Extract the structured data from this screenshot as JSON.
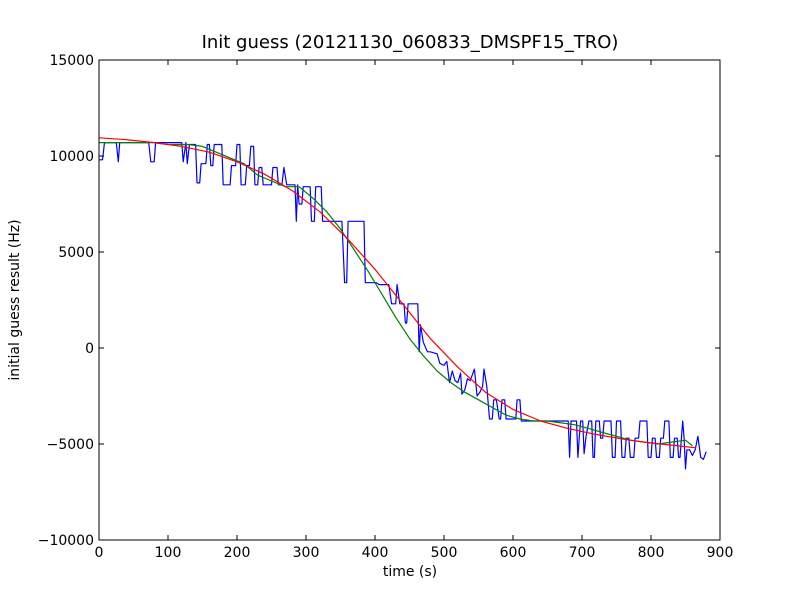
{
  "chart_data": {
    "type": "line",
    "title": "Init guess (20121130_060833_DMSPF15_TRO)",
    "xlabel": "time (s)",
    "ylabel": "initial guess result (Hz)",
    "xlim": [
      0,
      900
    ],
    "ylim": [
      -10000,
      15000
    ],
    "xticks": [
      0,
      100,
      200,
      300,
      400,
      500,
      600,
      700,
      800,
      900
    ],
    "yticks": [
      -10000,
      -5000,
      0,
      5000,
      10000,
      15000
    ],
    "xtick_labels": [
      "0",
      "100",
      "200",
      "300",
      "400",
      "500",
      "600",
      "700",
      "800",
      "900"
    ],
    "ytick_labels": [
      "−10000",
      "−5000",
      "0",
      "5000",
      "10000",
      "15000"
    ],
    "grid": false,
    "legend": "none",
    "series": [
      {
        "color": "#0000ff",
        "points": [
          [
            0,
            9800
          ],
          [
            5,
            9800
          ],
          [
            8,
            10700
          ],
          [
            25,
            10700
          ],
          [
            28,
            9700
          ],
          [
            30,
            10700
          ],
          [
            72,
            10700
          ],
          [
            75,
            9700
          ],
          [
            80,
            9700
          ],
          [
            82,
            10700
          ],
          [
            120,
            10700
          ],
          [
            122,
            9700
          ],
          [
            126,
            10700
          ],
          [
            128,
            9600
          ],
          [
            131,
            10600
          ],
          [
            140,
            10600
          ],
          [
            142,
            8600
          ],
          [
            146,
            8600
          ],
          [
            148,
            9600
          ],
          [
            155,
            9600
          ],
          [
            157,
            10600
          ],
          [
            160,
            10600
          ],
          [
            162,
            9500
          ],
          [
            165,
            9500
          ],
          [
            167,
            10600
          ],
          [
            178,
            10600
          ],
          [
            180,
            8500
          ],
          [
            190,
            8500
          ],
          [
            192,
            9500
          ],
          [
            198,
            9500
          ],
          [
            200,
            10600
          ],
          [
            204,
            10600
          ],
          [
            206,
            8500
          ],
          [
            212,
            8500
          ],
          [
            214,
            9500
          ],
          [
            218,
            9500
          ],
          [
            220,
            10500
          ],
          [
            224,
            10500
          ],
          [
            226,
            8500
          ],
          [
            230,
            8500
          ],
          [
            232,
            9400
          ],
          [
            236,
            9400
          ],
          [
            238,
            8500
          ],
          [
            250,
            8500
          ],
          [
            252,
            9400
          ],
          [
            258,
            9400
          ],
          [
            260,
            8500
          ],
          [
            265,
            8500
          ],
          [
            268,
            9400
          ],
          [
            272,
            8500
          ],
          [
            284,
            8500
          ],
          [
            286,
            6600
          ],
          [
            288,
            8500
          ],
          [
            290,
            7500
          ],
          [
            294,
            7500
          ],
          [
            296,
            8400
          ],
          [
            306,
            8400
          ],
          [
            308,
            6600
          ],
          [
            312,
            6600
          ],
          [
            314,
            8400
          ],
          [
            322,
            8400
          ],
          [
            324,
            6600
          ],
          [
            345,
            6600
          ],
          [
            352,
            6600
          ],
          [
            356,
            3400
          ],
          [
            359,
            3400
          ],
          [
            361,
            6600
          ],
          [
            384,
            6600
          ],
          [
            386,
            3400
          ],
          [
            390,
            3400
          ],
          [
            395,
            3400
          ],
          [
            398,
            3400
          ],
          [
            402,
            3400
          ],
          [
            406,
            3300
          ],
          [
            420,
            3300
          ],
          [
            424,
            2300
          ],
          [
            430,
            2300
          ],
          [
            432,
            3300
          ],
          [
            436,
            2300
          ],
          [
            442,
            2300
          ],
          [
            444,
            1300
          ],
          [
            446,
            1300
          ],
          [
            448,
            2300
          ],
          [
            462,
            2300
          ],
          [
            464,
            -200
          ],
          [
            466,
            1200
          ],
          [
            470,
            300
          ],
          [
            476,
            -200
          ],
          [
            480,
            -200
          ],
          [
            490,
            -300
          ],
          [
            494,
            -800
          ],
          [
            500,
            -900
          ],
          [
            504,
            -700
          ],
          [
            508,
            -1800
          ],
          [
            512,
            -1200
          ],
          [
            516,
            -1700
          ],
          [
            520,
            -1800
          ],
          [
            524,
            -1300
          ],
          [
            526,
            -2400
          ],
          [
            530,
            -2200
          ],
          [
            534,
            -1600
          ],
          [
            538,
            -1700
          ],
          [
            540,
            -1500
          ],
          [
            544,
            -1100
          ],
          [
            548,
            -2500
          ],
          [
            552,
            -2300
          ],
          [
            556,
            -2000
          ],
          [
            558,
            -1100
          ],
          [
            562,
            -2000
          ],
          [
            566,
            -3700
          ],
          [
            570,
            -3700
          ],
          [
            572,
            -2700
          ],
          [
            576,
            -2700
          ],
          [
            580,
            -3700
          ],
          [
            582,
            -3700
          ],
          [
            584,
            -2700
          ],
          [
            588,
            -2700
          ],
          [
            590,
            -3700
          ],
          [
            604,
            -3700
          ],
          [
            606,
            -2700
          ],
          [
            610,
            -2700
          ],
          [
            612,
            -3800
          ],
          [
            680,
            -3800
          ],
          [
            682,
            -5700
          ],
          [
            684,
            -3800
          ],
          [
            692,
            -3800
          ],
          [
            694,
            -5700
          ],
          [
            696,
            -4700
          ],
          [
            698,
            -3800
          ],
          [
            701,
            -3800
          ],
          [
            703,
            -5500
          ],
          [
            706,
            -4600
          ],
          [
            710,
            -3800
          ],
          [
            714,
            -3800
          ],
          [
            716,
            -5700
          ],
          [
            718,
            -5700
          ],
          [
            720,
            -3800
          ],
          [
            725,
            -3800
          ],
          [
            727,
            -4700
          ],
          [
            730,
            -4700
          ],
          [
            732,
            -3800
          ],
          [
            742,
            -3800
          ],
          [
            744,
            -5700
          ],
          [
            748,
            -5700
          ],
          [
            750,
            -3800
          ],
          [
            756,
            -3800
          ],
          [
            758,
            -5700
          ],
          [
            762,
            -5700
          ],
          [
            764,
            -4700
          ],
          [
            768,
            -4700
          ],
          [
            770,
            -5700
          ],
          [
            775,
            -5700
          ],
          [
            777,
            -4700
          ],
          [
            782,
            -4700
          ],
          [
            784,
            -3800
          ],
          [
            794,
            -3800
          ],
          [
            796,
            -5700
          ],
          [
            800,
            -5700
          ],
          [
            802,
            -4700
          ],
          [
            806,
            -4700
          ],
          [
            808,
            -5700
          ],
          [
            812,
            -5700
          ],
          [
            814,
            -4700
          ],
          [
            818,
            -4700
          ],
          [
            820,
            -3800
          ],
          [
            826,
            -3800
          ],
          [
            828,
            -5700
          ],
          [
            832,
            -5700
          ],
          [
            834,
            -4700
          ],
          [
            838,
            -4700
          ],
          [
            840,
            -5700
          ],
          [
            842,
            -5700
          ],
          [
            844,
            -4700
          ],
          [
            846,
            -3800
          ],
          [
            848,
            -4700
          ],
          [
            850,
            -6300
          ],
          [
            852,
            -5300
          ],
          [
            856,
            -5300
          ],
          [
            860,
            -5600
          ],
          [
            864,
            -5300
          ],
          [
            868,
            -4600
          ],
          [
            872,
            -5700
          ],
          [
            876,
            -5800
          ],
          [
            880,
            -5400
          ]
        ]
      },
      {
        "color": "#008000",
        "points": [
          [
            0,
            10700
          ],
          [
            20,
            10700
          ],
          [
            50,
            10700
          ],
          [
            80,
            10700
          ],
          [
            100,
            10600
          ],
          [
            130,
            10600
          ],
          [
            150,
            10500
          ],
          [
            170,
            10200
          ],
          [
            190,
            9900
          ],
          [
            210,
            9600
          ],
          [
            230,
            9000
          ],
          [
            250,
            8700
          ],
          [
            270,
            8400
          ],
          [
            290,
            8400
          ],
          [
            310,
            7800
          ],
          [
            330,
            7100
          ],
          [
            350,
            6200
          ],
          [
            370,
            5100
          ],
          [
            390,
            4000
          ],
          [
            410,
            2800
          ],
          [
            430,
            1600
          ],
          [
            450,
            500
          ],
          [
            470,
            -400
          ],
          [
            490,
            -1200
          ],
          [
            510,
            -1800
          ],
          [
            530,
            -2300
          ],
          [
            550,
            -2700
          ],
          [
            570,
            -3100
          ],
          [
            590,
            -3500
          ],
          [
            610,
            -3700
          ],
          [
            630,
            -3800
          ],
          [
            650,
            -3800
          ],
          [
            670,
            -3900
          ],
          [
            690,
            -4000
          ],
          [
            710,
            -4200
          ],
          [
            730,
            -4400
          ],
          [
            750,
            -4600
          ],
          [
            770,
            -4800
          ],
          [
            790,
            -4900
          ],
          [
            810,
            -5000
          ],
          [
            830,
            -4900
          ],
          [
            850,
            -4800
          ],
          [
            860,
            -5100
          ]
        ]
      },
      {
        "color": "#ff0000",
        "points": [
          [
            0,
            10950
          ],
          [
            40,
            10850
          ],
          [
            80,
            10700
          ],
          [
            120,
            10500
          ],
          [
            160,
            10200
          ],
          [
            200,
            9700
          ],
          [
            240,
            9050
          ],
          [
            280,
            8200
          ],
          [
            320,
            7100
          ],
          [
            360,
            5700
          ],
          [
            400,
            4100
          ],
          [
            440,
            2300
          ],
          [
            480,
            500
          ],
          [
            520,
            -1000
          ],
          [
            560,
            -2300
          ],
          [
            600,
            -3200
          ],
          [
            640,
            -3800
          ],
          [
            680,
            -4200
          ],
          [
            720,
            -4500
          ],
          [
            760,
            -4750
          ],
          [
            800,
            -4950
          ],
          [
            840,
            -5100
          ],
          [
            865,
            -5200
          ]
        ]
      }
    ]
  }
}
